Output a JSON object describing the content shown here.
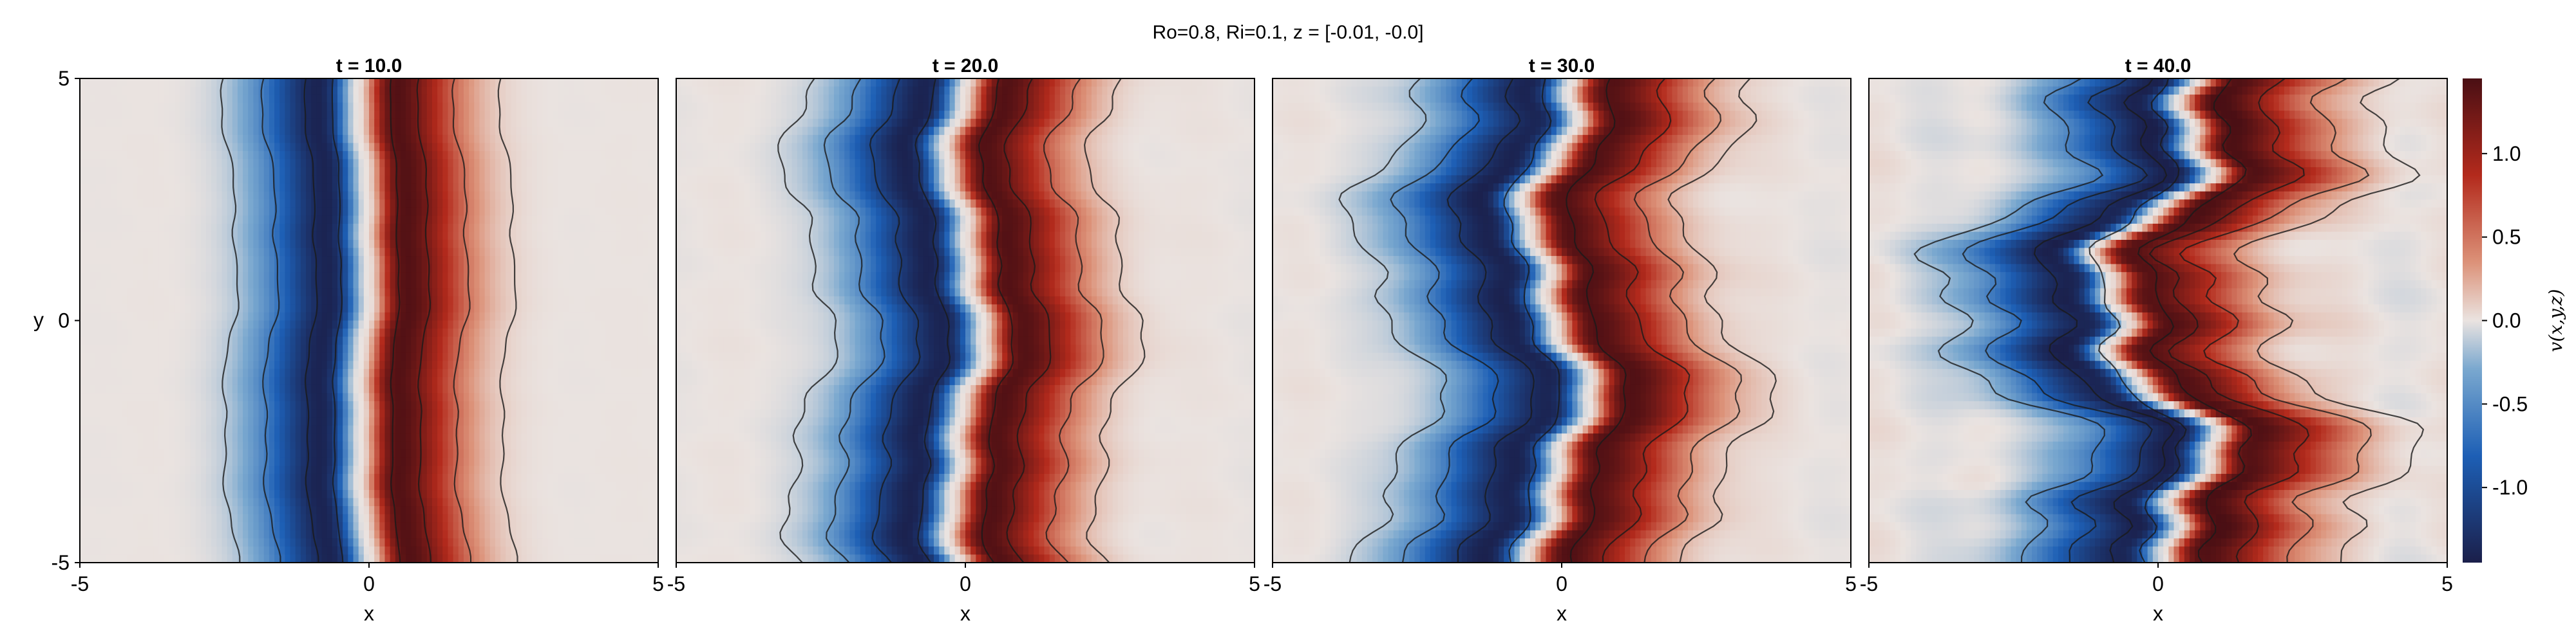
{
  "figure": {
    "suptitle": "Ro=0.8, Ri=0.1, z = [-0.01, -0.0]"
  },
  "chart_data": {
    "type": "heatmap",
    "colormap": "diverging blue-white-red (balance)",
    "colors": {
      "min": "#1b1f4a",
      "low": "#1d5fb5",
      "mid": "#eae3e0",
      "high": "#b32a1c",
      "max": "#4a0f14",
      "contour": "#1a1a1a"
    },
    "panels": [
      {
        "title": "t = 10.0",
        "xlabel": "x",
        "ylabel": "y",
        "xlim": [
          -5,
          5
        ],
        "ylim": [
          -5,
          5
        ],
        "xticks": [
          "-5",
          "0",
          "5"
        ],
        "yticks": [
          "-5",
          "0",
          "5"
        ],
        "field": {
          "front_center_x": -0.1,
          "amplitude": 1.45,
          "width": 1.15,
          "waviness": 0.08,
          "irregularity": 0.1
        },
        "contours_x": [
          -2.4,
          -1.7,
          -1.0,
          -0.55,
          0.45,
          0.95,
          1.6,
          2.4
        ]
      },
      {
        "title": "t = 20.0",
        "xlabel": "x",
        "ylabel": "",
        "xlim": [
          -5,
          5
        ],
        "ylim": [
          -5,
          5
        ],
        "xticks": [
          "-5",
          "0",
          "5"
        ],
        "yticks": [],
        "field": {
          "front_center_x": 0.0,
          "amplitude": 1.45,
          "width": 1.3,
          "waviness": 0.25,
          "irregularity": 0.3
        },
        "contours_x": [
          -2.7,
          -1.9,
          -1.2,
          -0.55,
          0.55,
          1.1,
          1.9,
          2.6
        ]
      },
      {
        "title": "t = 30.0",
        "xlabel": "x",
        "ylabel": "",
        "xlim": [
          -5,
          5
        ],
        "ylim": [
          -5,
          5
        ],
        "xticks": [
          "-5",
          "0",
          "5"
        ],
        "yticks": [],
        "field": {
          "front_center_x": -0.1,
          "amplitude": 1.45,
          "width": 1.5,
          "waviness": 0.45,
          "irregularity": 0.5
        },
        "contours_x": [
          -2.9,
          -2.0,
          -1.2,
          -0.5,
          0.6,
          1.4,
          2.2,
          2.8
        ]
      },
      {
        "title": "t = 40.0",
        "xlabel": "x",
        "ylabel": "",
        "xlim": [
          -5,
          5
        ],
        "ylim": [
          -5,
          5
        ],
        "xticks": [
          "-5",
          "0",
          "5"
        ],
        "yticks": [],
        "field": {
          "front_center_x": -0.1,
          "amplitude": 1.45,
          "width": 1.6,
          "waviness": 0.9,
          "irregularity": 1.0
        },
        "contours_x": [
          -2.6,
          -1.8,
          -1.0,
          -0.4,
          0.6,
          1.2,
          2.0,
          2.9
        ]
      }
    ],
    "colorbar": {
      "label": "v(x,y,z)",
      "range": [
        -1.45,
        1.45
      ],
      "ticks": [
        -1.0,
        -0.5,
        0.0,
        0.5,
        1.0
      ],
      "ticklabels": [
        "-1.0",
        "-0.5",
        "0.0",
        "0.5",
        "1.0"
      ]
    }
  }
}
